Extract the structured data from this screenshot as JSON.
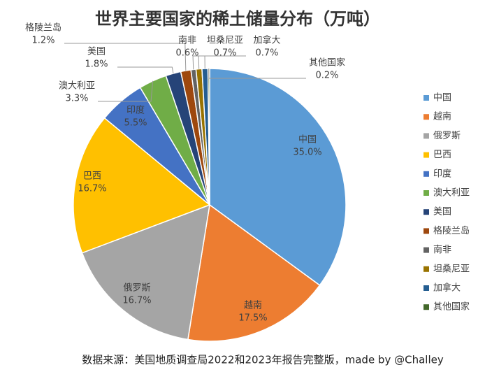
{
  "chart_data": {
    "type": "pie",
    "title": "世界主要国家的稀土储量分布（万吨）",
    "categories": [
      "中国",
      "越南",
      "俄罗斯",
      "巴西",
      "印度",
      "澳大利亚",
      "美国",
      "格陵兰岛",
      "南非",
      "坦桑尼亚",
      "加拿大",
      "其他国家"
    ],
    "values": [
      35.0,
      17.5,
      16.7,
      16.7,
      5.5,
      3.3,
      1.8,
      1.2,
      0.6,
      0.7,
      0.7,
      0.2
    ],
    "value_labels": [
      "35.0%",
      "17.5%",
      "16.7%",
      "16.7%",
      "5.5%",
      "3.3%",
      "1.8%",
      "1.2%",
      "0.6%",
      "0.7%",
      "0.7%",
      "0.2%"
    ],
    "colors": [
      "#5b9bd5",
      "#ed7d31",
      "#a5a5a5",
      "#ffc000",
      "#4472c4",
      "#70ad47",
      "#264478",
      "#9e480e",
      "#636363",
      "#997300",
      "#255e91",
      "#43682b"
    ],
    "legend": "right",
    "source": "数据来源：美国地质调查局2022和2023年报告完整版，made by @Challey"
  }
}
